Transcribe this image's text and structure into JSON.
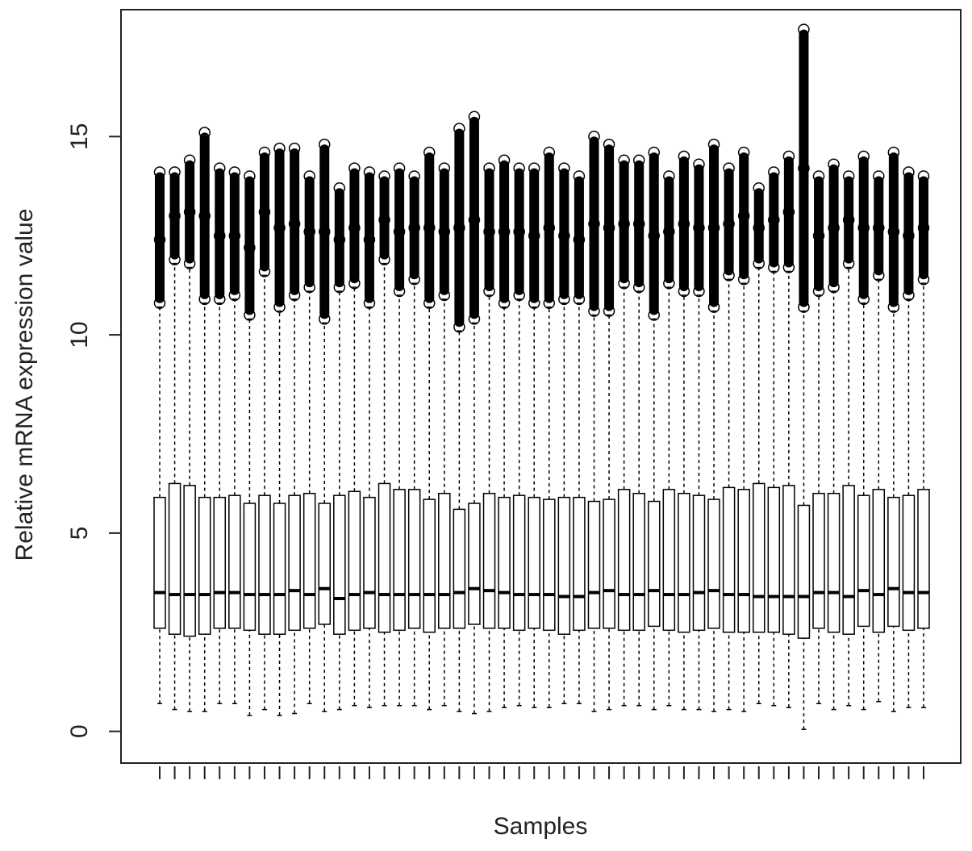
{
  "chart_data": {
    "type": "boxplot",
    "x_label": "Samples",
    "y_label": "Relative mRNA expression value",
    "ylim": [
      -0.8,
      18.2
    ],
    "yticks": [
      0,
      5,
      10,
      15
    ],
    "color": "#000000",
    "categories": [
      null,
      null,
      null,
      null,
      null,
      null,
      null,
      null,
      null,
      null,
      null,
      null,
      null,
      null,
      null,
      null,
      null,
      null,
      null,
      null,
      null,
      null,
      null,
      null,
      null,
      null,
      null,
      null,
      null,
      null,
      null,
      null,
      null,
      null,
      null,
      null,
      null,
      null,
      null,
      null,
      null,
      null,
      null,
      null,
      null,
      null,
      null,
      null,
      null,
      null,
      null,
      null
    ],
    "low": [
      0.7,
      0.55,
      0.5,
      0.5,
      0.7,
      0.7,
      0.4,
      0.55,
      0.4,
      0.45,
      0.7,
      0.5,
      0.55,
      0.65,
      0.6,
      0.65,
      0.65,
      0.65,
      0.55,
      0.65,
      0.5,
      0.45,
      0.5,
      0.6,
      0.65,
      0.6,
      0.6,
      0.7,
      0.7,
      0.5,
      0.55,
      0.65,
      0.65,
      0.55,
      0.65,
      0.55,
      0.55,
      0.5,
      0.55,
      0.5,
      0.7,
      0.65,
      0.6,
      0.05,
      0.7,
      0.55,
      0.65,
      0.55,
      0.75,
      0.5,
      0.6,
      0.6
    ],
    "q1": [
      2.6,
      2.45,
      2.4,
      2.45,
      2.6,
      2.6,
      2.55,
      2.45,
      2.45,
      2.55,
      2.6,
      2.7,
      2.45,
      2.55,
      2.6,
      2.5,
      2.55,
      2.6,
      2.5,
      2.6,
      2.6,
      2.7,
      2.6,
      2.6,
      2.55,
      2.6,
      2.55,
      2.45,
      2.55,
      2.6,
      2.6,
      2.55,
      2.55,
      2.65,
      2.55,
      2.5,
      2.55,
      2.6,
      2.5,
      2.5,
      2.5,
      2.5,
      2.45,
      2.35,
      2.6,
      2.5,
      2.45,
      2.65,
      2.5,
      2.65,
      2.55,
      2.6
    ],
    "median": [
      3.5,
      3.45,
      3.45,
      3.45,
      3.5,
      3.5,
      3.45,
      3.45,
      3.45,
      3.55,
      3.45,
      3.6,
      3.35,
      3.45,
      3.5,
      3.45,
      3.45,
      3.45,
      3.45,
      3.45,
      3.5,
      3.6,
      3.55,
      3.5,
      3.45,
      3.45,
      3.45,
      3.4,
      3.4,
      3.5,
      3.55,
      3.45,
      3.45,
      3.55,
      3.45,
      3.45,
      3.5,
      3.55,
      3.45,
      3.45,
      3.4,
      3.4,
      3.4,
      3.4,
      3.5,
      3.5,
      3.4,
      3.55,
      3.45,
      3.6,
      3.5,
      3.5
    ],
    "q3": [
      5.9,
      6.25,
      6.2,
      5.9,
      5.9,
      5.95,
      5.75,
      5.95,
      5.75,
      5.95,
      6.0,
      5.75,
      5.95,
      6.05,
      5.9,
      6.25,
      6.1,
      6.1,
      5.85,
      6.0,
      5.6,
      5.75,
      6.0,
      5.9,
      5.95,
      5.9,
      5.85,
      5.9,
      5.9,
      5.8,
      5.85,
      6.1,
      6.0,
      5.8,
      6.1,
      6.0,
      5.95,
      5.85,
      6.15,
      6.1,
      6.25,
      6.15,
      6.2,
      5.7,
      6.0,
      6.0,
      6.2,
      5.95,
      6.1,
      5.9,
      5.95,
      6.1
    ],
    "high": [
      10.7,
      11.8,
      11.7,
      10.8,
      10.8,
      10.9,
      10.4,
      11.5,
      10.6,
      10.9,
      11.1,
      10.3,
      11.1,
      11.2,
      10.7,
      11.8,
      11.0,
      11.3,
      10.7,
      10.9,
      10.1,
      10.3,
      11.0,
      10.7,
      10.9,
      10.7,
      10.7,
      10.8,
      10.8,
      10.5,
      10.5,
      11.2,
      11.1,
      10.4,
      11.2,
      11.0,
      11.0,
      10.6,
      11.4,
      11.3,
      11.7,
      11.6,
      11.6,
      10.6,
      11.0,
      11.1,
      11.7,
      10.8,
      11.4,
      10.6,
      10.9,
      11.3
    ],
    "outliers": [
      [
        10.8,
        12.4,
        14.1
      ],
      [
        11.9,
        13.0,
        14.1
      ],
      [
        11.8,
        13.1,
        14.4
      ],
      [
        10.9,
        13.0,
        15.1
      ],
      [
        10.9,
        12.5,
        14.2
      ],
      [
        11.0,
        12.5,
        14.1
      ],
      [
        10.5,
        12.2,
        14.0
      ],
      [
        11.6,
        13.1,
        14.6
      ],
      [
        10.7,
        12.7,
        14.7
      ],
      [
        11.0,
        12.8,
        14.7
      ],
      [
        11.2,
        12.6,
        14.0
      ],
      [
        10.4,
        12.6,
        14.8
      ],
      [
        11.2,
        12.4,
        13.7
      ],
      [
        11.3,
        12.7,
        14.2
      ],
      [
        10.8,
        12.4,
        14.1
      ],
      [
        11.9,
        12.9,
        14.0
      ],
      [
        11.1,
        12.6,
        14.2
      ],
      [
        11.4,
        12.7,
        14.0
      ],
      [
        10.8,
        12.7,
        14.6
      ],
      [
        11.0,
        12.6,
        14.2
      ],
      [
        10.2,
        12.7,
        15.2
      ],
      [
        10.4,
        12.9,
        15.5
      ],
      [
        11.1,
        12.6,
        14.2
      ],
      [
        10.8,
        12.6,
        14.4
      ],
      [
        11.0,
        12.6,
        14.2
      ],
      [
        10.8,
        12.5,
        14.2
      ],
      [
        10.8,
        12.7,
        14.6
      ],
      [
        10.9,
        12.5,
        14.2
      ],
      [
        10.9,
        12.4,
        14.0
      ],
      [
        10.6,
        12.8,
        15.0
      ],
      [
        10.6,
        12.7,
        14.8
      ],
      [
        11.3,
        12.8,
        14.4
      ],
      [
        11.2,
        12.8,
        14.4
      ],
      [
        10.5,
        12.5,
        14.6
      ],
      [
        11.3,
        12.6,
        14.0
      ],
      [
        11.1,
        12.8,
        14.5
      ],
      [
        11.1,
        12.7,
        14.3
      ],
      [
        10.7,
        12.7,
        14.8
      ],
      [
        11.5,
        12.8,
        14.2
      ],
      [
        11.4,
        13.0,
        14.6
      ],
      [
        11.8,
        12.7,
        13.7
      ],
      [
        11.7,
        12.9,
        14.1
      ],
      [
        11.7,
        13.1,
        14.5
      ],
      [
        10.7,
        14.2,
        17.7
      ],
      [
        11.1,
        12.5,
        14.0
      ],
      [
        11.2,
        12.7,
        14.3
      ],
      [
        11.8,
        12.9,
        14.0
      ],
      [
        10.9,
        12.7,
        14.5
      ],
      [
        11.5,
        12.7,
        14.0
      ],
      [
        10.7,
        12.6,
        14.6
      ],
      [
        11.0,
        12.5,
        14.1
      ],
      [
        11.4,
        12.7,
        14.0
      ]
    ]
  }
}
